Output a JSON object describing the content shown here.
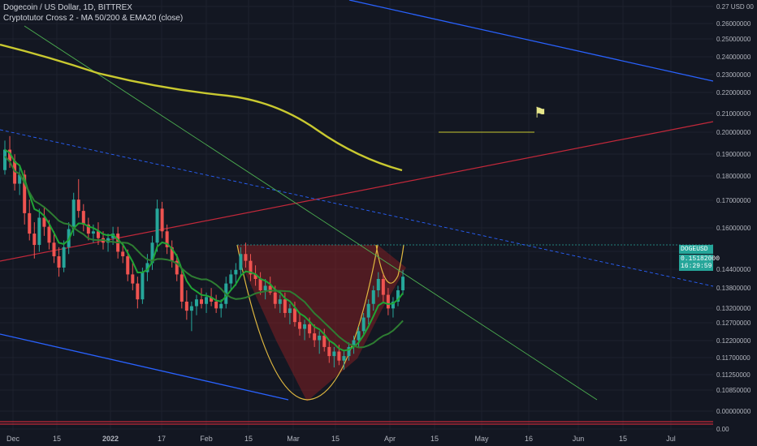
{
  "header": {
    "title": "Dogecoin / US Dollar, 1D, BITTREX",
    "indicator": "Cryptotutor Cross 2 - MA 50/200 & EMA20 (close)"
  },
  "price_tag": {
    "symbol": "DOGEUSD",
    "price": "0.15182000",
    "countdown": "16:29:59"
  },
  "flag_icon": "flag-icon",
  "chart_data": {
    "type": "candlestick",
    "y_axis": {
      "range": [
        0.099,
        0.274
      ],
      "labels": [
        "0.27 USD 00",
        "0.26000000",
        "0.25000000",
        "0.24000000",
        "0.23000000",
        "0.22000000",
        "0.21000000",
        "0.20000000",
        "0.19000000",
        "0.18000000",
        "0.17000000",
        "0.16000000",
        "0.15182000",
        "0.14400000",
        "0.13800000",
        "0.13200000",
        "0.12700000",
        "0.12200000",
        "0.11700000",
        "0.11250000",
        "0.10850000",
        "0.00000000",
        "0.00"
      ]
    },
    "x_axis": {
      "labels": [
        "Dec",
        "15",
        "2022",
        "17",
        "Feb",
        "15",
        "Mar",
        "15",
        "Apr",
        "15",
        "May",
        "16",
        "Jun",
        "15",
        "Jul"
      ]
    },
    "candles": [
      [
        0.199,
        0.212,
        0.197,
        0.208
      ],
      [
        0.208,
        0.214,
        0.2,
        0.203
      ],
      [
        0.203,
        0.206,
        0.19,
        0.193
      ],
      [
        0.193,
        0.201,
        0.188,
        0.197
      ],
      [
        0.197,
        0.199,
        0.175,
        0.18
      ],
      [
        0.18,
        0.186,
        0.168,
        0.171
      ],
      [
        0.171,
        0.176,
        0.16,
        0.166
      ],
      [
        0.166,
        0.182,
        0.163,
        0.178
      ],
      [
        0.178,
        0.183,
        0.17,
        0.174
      ],
      [
        0.174,
        0.177,
        0.164,
        0.167
      ],
      [
        0.167,
        0.172,
        0.158,
        0.161
      ],
      [
        0.161,
        0.165,
        0.152,
        0.156
      ],
      [
        0.156,
        0.168,
        0.154,
        0.165
      ],
      [
        0.165,
        0.176,
        0.162,
        0.173
      ],
      [
        0.173,
        0.189,
        0.17,
        0.186
      ],
      [
        0.186,
        0.195,
        0.178,
        0.181
      ],
      [
        0.181,
        0.184,
        0.172,
        0.175
      ],
      [
        0.175,
        0.178,
        0.168,
        0.171
      ],
      [
        0.171,
        0.175,
        0.167,
        0.172
      ],
      [
        0.172,
        0.176,
        0.166,
        0.169
      ],
      [
        0.169,
        0.172,
        0.164,
        0.167
      ],
      [
        0.167,
        0.171,
        0.163,
        0.169
      ],
      [
        0.169,
        0.174,
        0.166,
        0.171
      ],
      [
        0.171,
        0.174,
        0.16,
        0.163
      ],
      [
        0.163,
        0.167,
        0.158,
        0.161
      ],
      [
        0.161,
        0.164,
        0.15,
        0.153
      ],
      [
        0.153,
        0.158,
        0.146,
        0.149
      ],
      [
        0.149,
        0.152,
        0.138,
        0.142
      ],
      [
        0.142,
        0.156,
        0.14,
        0.154
      ],
      [
        0.154,
        0.162,
        0.15,
        0.158
      ],
      [
        0.158,
        0.17,
        0.155,
        0.167
      ],
      [
        0.167,
        0.186,
        0.163,
        0.182
      ],
      [
        0.182,
        0.185,
        0.169,
        0.172
      ],
      [
        0.172,
        0.175,
        0.162,
        0.165
      ],
      [
        0.165,
        0.168,
        0.156,
        0.159
      ],
      [
        0.159,
        0.162,
        0.15,
        0.153
      ],
      [
        0.153,
        0.156,
        0.138,
        0.141
      ],
      [
        0.141,
        0.146,
        0.133,
        0.137
      ],
      [
        0.137,
        0.141,
        0.128,
        0.139
      ],
      [
        0.139,
        0.144,
        0.135,
        0.142
      ],
      [
        0.142,
        0.147,
        0.138,
        0.14
      ],
      [
        0.14,
        0.145,
        0.136,
        0.143
      ],
      [
        0.143,
        0.147,
        0.139,
        0.141
      ],
      [
        0.141,
        0.144,
        0.136,
        0.138
      ],
      [
        0.138,
        0.142,
        0.134,
        0.14
      ],
      [
        0.14,
        0.152,
        0.138,
        0.149
      ],
      [
        0.149,
        0.155,
        0.146,
        0.153
      ],
      [
        0.153,
        0.158,
        0.148,
        0.155
      ],
      [
        0.155,
        0.165,
        0.152,
        0.162
      ],
      [
        0.162,
        0.167,
        0.156,
        0.159
      ],
      [
        0.159,
        0.162,
        0.15,
        0.153
      ],
      [
        0.153,
        0.157,
        0.148,
        0.151
      ],
      [
        0.151,
        0.154,
        0.144,
        0.146
      ],
      [
        0.146,
        0.151,
        0.142,
        0.148
      ],
      [
        0.148,
        0.152,
        0.144,
        0.145
      ],
      [
        0.145,
        0.148,
        0.138,
        0.14
      ],
      [
        0.14,
        0.144,
        0.136,
        0.142
      ],
      [
        0.142,
        0.145,
        0.134,
        0.136
      ],
      [
        0.136,
        0.14,
        0.131,
        0.138
      ],
      [
        0.138,
        0.141,
        0.13,
        0.132
      ],
      [
        0.132,
        0.136,
        0.126,
        0.129
      ],
      [
        0.129,
        0.133,
        0.124,
        0.131
      ],
      [
        0.131,
        0.134,
        0.125,
        0.127
      ],
      [
        0.127,
        0.131,
        0.121,
        0.124
      ],
      [
        0.124,
        0.128,
        0.118,
        0.126
      ],
      [
        0.126,
        0.129,
        0.119,
        0.121
      ],
      [
        0.121,
        0.124,
        0.114,
        0.117
      ],
      [
        0.117,
        0.121,
        0.112,
        0.119
      ],
      [
        0.119,
        0.122,
        0.113,
        0.115
      ],
      [
        0.115,
        0.119,
        0.111,
        0.117
      ],
      [
        0.117,
        0.123,
        0.115,
        0.121
      ],
      [
        0.121,
        0.126,
        0.118,
        0.124
      ],
      [
        0.124,
        0.13,
        0.121,
        0.128
      ],
      [
        0.128,
        0.136,
        0.126,
        0.134
      ],
      [
        0.134,
        0.142,
        0.131,
        0.14
      ],
      [
        0.14,
        0.148,
        0.137,
        0.146
      ],
      [
        0.146,
        0.154,
        0.143,
        0.151
      ],
      [
        0.151,
        0.153,
        0.141,
        0.144
      ],
      [
        0.144,
        0.147,
        0.135,
        0.138
      ],
      [
        0.138,
        0.143,
        0.134,
        0.141
      ],
      [
        0.141,
        0.148,
        0.139,
        0.146
      ],
      [
        0.146,
        0.155,
        0.144,
        0.152
      ]
    ]
  }
}
